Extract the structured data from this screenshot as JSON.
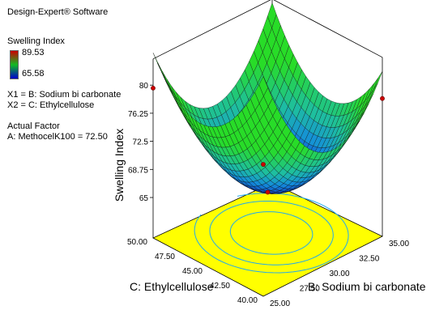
{
  "header": {
    "software": "Design-Expert® Software",
    "response_name": "Swelling Index",
    "max_value": "89.53",
    "min_value": "65.58",
    "x1_def": "X1 = B: Sodium bi carbonate",
    "x2_def": "X2 = C: Ethylcellulose",
    "actual_factor_title": "Actual Factor",
    "actual_factor_value": "A: MethocelK100 = 72.50"
  },
  "colors": {
    "colorbar_top": "#cc0000",
    "colorbar_mid": "#11bb22",
    "colorbar_bottom": "#0000cc",
    "floor": "#ffff00",
    "contour": "#22aaee",
    "design_point": "#cc0000"
  },
  "chart_data": {
    "type": "surface3d",
    "xlabel": "B: Sodium bi carbonate",
    "ylabel": "C: Ethylcellulose",
    "zlabel": "Swelling Index",
    "x_range": [
      25.0,
      35.0
    ],
    "y_range": [
      40.0,
      50.0
    ],
    "z_range": [
      65,
      80
    ],
    "x_ticks": [
      "25.00",
      "27.50",
      "30.00",
      "32.50",
      "35.00"
    ],
    "y_ticks": [
      "40.00",
      "42.50",
      "45.00",
      "47.50",
      "50.00"
    ],
    "z_ticks": [
      "65",
      "68.75",
      "72.5",
      "76.25",
      "80"
    ],
    "surface": {
      "center": [
        30.5,
        45.2
      ],
      "min": 65.6,
      "a": 0.42,
      "b": 0.33,
      "c": 0.06
    },
    "design_points": [
      {
        "x": 25.0,
        "y": 50.0,
        "z": 79.6
      },
      {
        "x": 35.0,
        "y": 40.0,
        "z": 78.0
      },
      {
        "x": 25.0,
        "y": 40.0,
        "z": 77.2
      },
      {
        "x": 30.0,
        "y": 45.0,
        "z": 65.6
      }
    ]
  }
}
